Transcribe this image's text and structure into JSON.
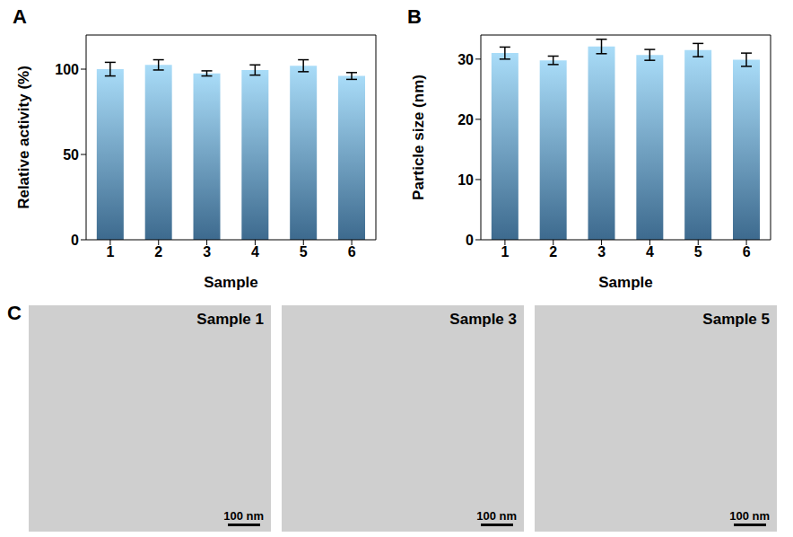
{
  "chart_data": [
    {
      "type": "bar",
      "panel": "A",
      "x_label": "Sample",
      "y_label": "Relative activity (%)",
      "categories": [
        "1",
        "2",
        "3",
        "4",
        "5",
        "6"
      ],
      "values": [
        100,
        102.5,
        97.5,
        99.5,
        102,
        96
      ],
      "errors": [
        4,
        3,
        1.5,
        3,
        3.5,
        2
      ],
      "color": "#a9dcf8",
      "ylim": [
        0,
        120
      ],
      "yticks": [
        0,
        50,
        100
      ],
      "grid": false
    },
    {
      "type": "bar",
      "panel": "B",
      "x_label": "Sample",
      "y_label": "Particle size (nm)",
      "categories": [
        "1",
        "2",
        "3",
        "4",
        "5",
        "6"
      ],
      "values": [
        31,
        29.8,
        32.1,
        30.7,
        31.5,
        29.9
      ],
      "errors": [
        1,
        0.7,
        1.2,
        0.9,
        1.1,
        1.1
      ],
      "color": "#a9dcf8",
      "ylim": [
        0,
        34
      ],
      "yticks": [
        0,
        10,
        20,
        30
      ],
      "grid": false
    }
  ],
  "images": {
    "panel": "C",
    "items": [
      {
        "label": "Sample 1",
        "scale_bar": "100 nm"
      },
      {
        "label": "Sample 3",
        "scale_bar": "100 nm"
      },
      {
        "label": "Sample 5",
        "scale_bar": "100 nm"
      }
    ]
  }
}
